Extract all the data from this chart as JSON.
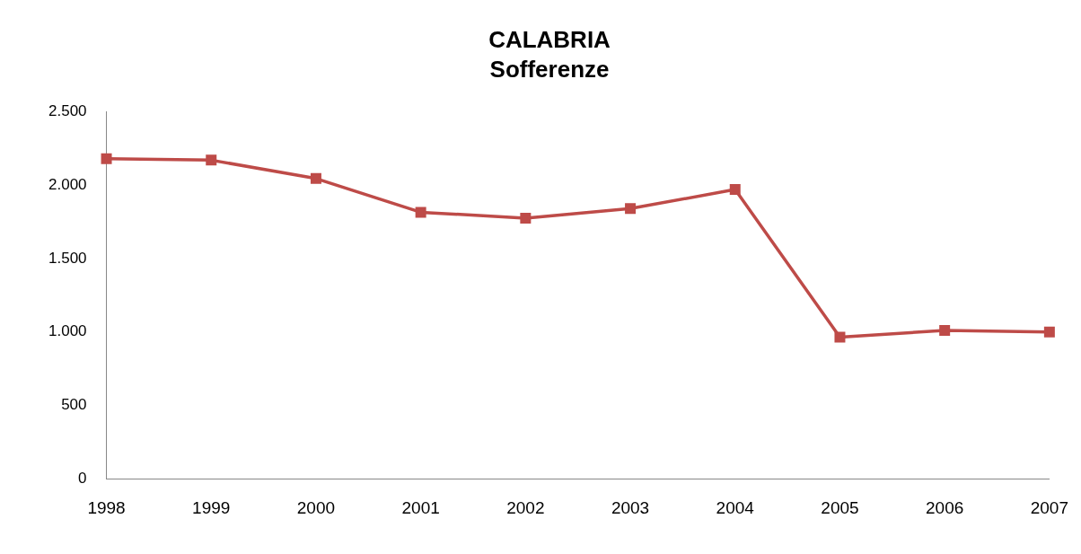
{
  "chart_data": {
    "type": "line",
    "title": "CALABRIA",
    "subtitle": "Sofferenze",
    "categories": [
      "1998",
      "1999",
      "2000",
      "2001",
      "2002",
      "2003",
      "2004",
      "2005",
      "2006",
      "2007"
    ],
    "series": [
      {
        "color": "#be4b48",
        "values": [
          2180,
          2170,
          2045,
          1815,
          1775,
          1840,
          1970,
          965,
          1010,
          1000
        ]
      }
    ],
    "ylim": [
      0,
      2500
    ],
    "yticks": [
      0,
      500,
      {
        "value": 1000,
        "label": "1.000"
      },
      {
        "value": 1500,
        "label": "1.500"
      },
      {
        "value": 2000,
        "label": "2.000"
      },
      {
        "value": 2500,
        "label": "2.500"
      }
    ],
    "grid": false,
    "legend": false,
    "marker": "square",
    "line_style": "solid"
  }
}
